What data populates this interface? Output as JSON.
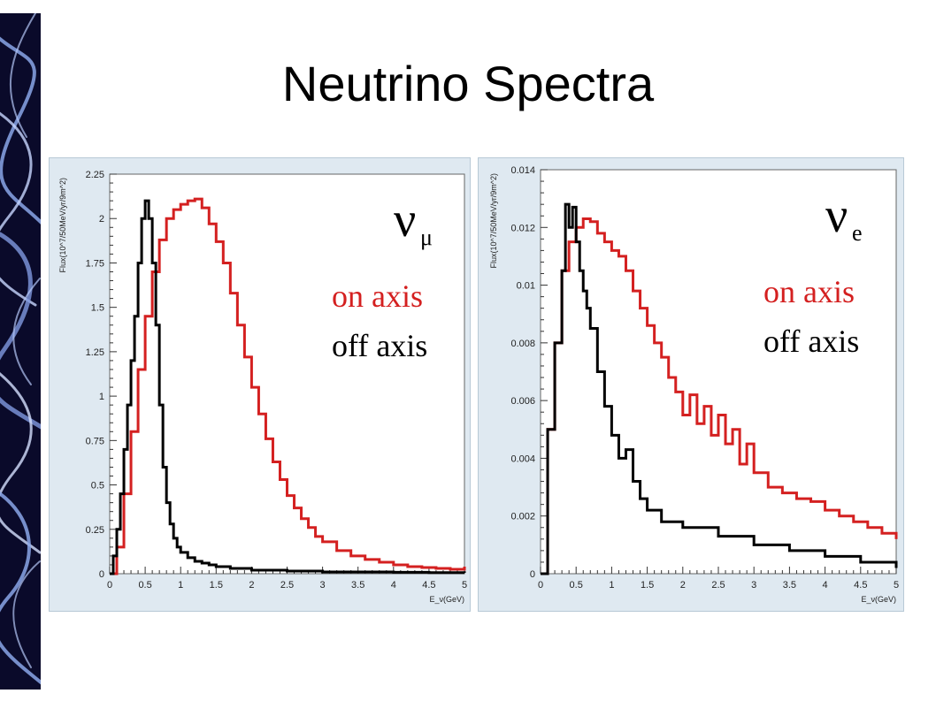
{
  "slide": {
    "title": "Neutrino Spectra",
    "decoration": "blue-swirl-stripe"
  },
  "chart_data": [
    {
      "type": "line",
      "nu_symbol": "ν",
      "nu_subscript": "μ",
      "xlabel": "E_ν(GeV)",
      "ylabel": "Flux(10^7/50MeV/yr/9m^2)",
      "xlim": [
        0,
        5
      ],
      "ylim": [
        0,
        2.25
      ],
      "xticks": [
        0,
        0.5,
        1,
        1.5,
        2,
        2.5,
        3,
        3.5,
        4,
        4.5,
        5
      ],
      "xtick_labels": [
        "0",
        "0.5",
        "1",
        "1.5",
        "2",
        "2.5",
        "3",
        "3.5",
        "4",
        "4.5",
        "5"
      ],
      "yticks": [
        0,
        0.25,
        0.5,
        0.75,
        1,
        1.25,
        1.5,
        1.75,
        2,
        2.25
      ],
      "ytick_labels": [
        "0",
        "0.25",
        "0.5",
        "0.75",
        "1",
        "1.25",
        "1.5",
        "1.75",
        "2",
        "2.25"
      ],
      "grid": false,
      "legend_position": "top-right",
      "series": [
        {
          "name": "on axis",
          "color": "#d42020",
          "x": [
            0,
            0.1,
            0.2,
            0.3,
            0.4,
            0.5,
            0.6,
            0.7,
            0.8,
            0.9,
            1.0,
            1.1,
            1.2,
            1.3,
            1.4,
            1.5,
            1.6,
            1.7,
            1.8,
            1.9,
            2.0,
            2.1,
            2.2,
            2.3,
            2.4,
            2.5,
            2.6,
            2.7,
            2.8,
            2.9,
            3.0,
            3.2,
            3.4,
            3.6,
            3.8,
            4.0,
            4.2,
            4.4,
            4.6,
            4.8,
            5.0
          ],
          "values": [
            0.0,
            0.15,
            0.45,
            0.8,
            1.15,
            1.45,
            1.7,
            1.88,
            2.0,
            2.05,
            2.08,
            2.1,
            2.11,
            2.06,
            1.97,
            1.87,
            1.75,
            1.58,
            1.4,
            1.22,
            1.05,
            0.9,
            0.76,
            0.63,
            0.53,
            0.44,
            0.37,
            0.31,
            0.26,
            0.21,
            0.18,
            0.13,
            0.1,
            0.08,
            0.065,
            0.05,
            0.04,
            0.035,
            0.03,
            0.025,
            0.04
          ]
        },
        {
          "name": "off axis",
          "color": "#000000",
          "x": [
            0,
            0.05,
            0.1,
            0.15,
            0.2,
            0.25,
            0.3,
            0.35,
            0.4,
            0.45,
            0.5,
            0.55,
            0.6,
            0.65,
            0.7,
            0.75,
            0.8,
            0.85,
            0.9,
            0.95,
            1.0,
            1.1,
            1.2,
            1.3,
            1.4,
            1.5,
            1.7,
            2.0,
            2.5,
            3.0,
            3.5,
            4.0,
            4.5,
            5.0
          ],
          "values": [
            0.0,
            0.1,
            0.25,
            0.45,
            0.7,
            0.95,
            1.2,
            1.45,
            1.75,
            2.0,
            2.1,
            2.0,
            1.75,
            1.4,
            0.95,
            0.6,
            0.4,
            0.28,
            0.2,
            0.15,
            0.12,
            0.09,
            0.07,
            0.06,
            0.05,
            0.04,
            0.03,
            0.02,
            0.015,
            0.01,
            0.01,
            0.008,
            0.006,
            0.005
          ]
        }
      ]
    },
    {
      "type": "line",
      "nu_symbol": "ν",
      "nu_subscript": "e",
      "xlabel": "E_ν(GeV)",
      "ylabel": "Flux(10^7/50MeV/yr/9m^2)",
      "xlim": [
        0,
        5
      ],
      "ylim": [
        0,
        0.014
      ],
      "xticks": [
        0,
        0.5,
        1,
        1.5,
        2,
        2.5,
        3,
        3.5,
        4,
        4.5,
        5
      ],
      "xtick_labels": [
        "0",
        "0.5",
        "1",
        "1.5",
        "2",
        "2.5",
        "3",
        "3.5",
        "4",
        "4.5",
        "5"
      ],
      "yticks": [
        0,
        0.002,
        0.004,
        0.006,
        0.008,
        0.01,
        0.012,
        0.014
      ],
      "ytick_labels": [
        "0",
        "0.002",
        "0.004",
        "0.006",
        "0.008",
        "0.01",
        "0.012",
        "0.014"
      ],
      "grid": false,
      "legend_position": "top-right",
      "series": [
        {
          "name": "on axis",
          "color": "#d42020",
          "x": [
            0,
            0.1,
            0.2,
            0.3,
            0.4,
            0.5,
            0.6,
            0.7,
            0.8,
            0.9,
            1.0,
            1.1,
            1.2,
            1.3,
            1.4,
            1.5,
            1.6,
            1.7,
            1.8,
            1.9,
            2.0,
            2.1,
            2.2,
            2.3,
            2.4,
            2.5,
            2.6,
            2.7,
            2.8,
            2.9,
            3.0,
            3.2,
            3.4,
            3.6,
            3.8,
            4.0,
            4.2,
            4.4,
            4.6,
            4.8,
            5.0
          ],
          "values": [
            0.0,
            0.005,
            0.008,
            0.0105,
            0.0115,
            0.012,
            0.0123,
            0.0122,
            0.0118,
            0.0115,
            0.0112,
            0.011,
            0.0105,
            0.0098,
            0.0092,
            0.0086,
            0.008,
            0.0075,
            0.0068,
            0.0063,
            0.0055,
            0.0062,
            0.0052,
            0.0058,
            0.0048,
            0.0055,
            0.0045,
            0.005,
            0.0038,
            0.0045,
            0.0035,
            0.003,
            0.0028,
            0.0026,
            0.0025,
            0.0022,
            0.002,
            0.0018,
            0.0016,
            0.0014,
            0.0012
          ]
        },
        {
          "name": "off axis",
          "color": "#000000",
          "x": [
            0,
            0.1,
            0.2,
            0.3,
            0.35,
            0.4,
            0.45,
            0.5,
            0.55,
            0.6,
            0.65,
            0.7,
            0.8,
            0.9,
            1.0,
            1.1,
            1.2,
            1.3,
            1.4,
            1.5,
            1.7,
            2.0,
            2.5,
            3.0,
            3.5,
            4.0,
            4.5,
            5.0
          ],
          "values": [
            0.0,
            0.005,
            0.008,
            0.0105,
            0.0128,
            0.012,
            0.0127,
            0.0115,
            0.0105,
            0.0098,
            0.0092,
            0.0085,
            0.007,
            0.0058,
            0.0048,
            0.004,
            0.0043,
            0.0032,
            0.0026,
            0.0022,
            0.0018,
            0.0016,
            0.0013,
            0.001,
            0.0008,
            0.0006,
            0.0004,
            0.0002
          ]
        }
      ]
    }
  ],
  "legend": {
    "on_label": "on axis",
    "off_label": "off axis"
  }
}
